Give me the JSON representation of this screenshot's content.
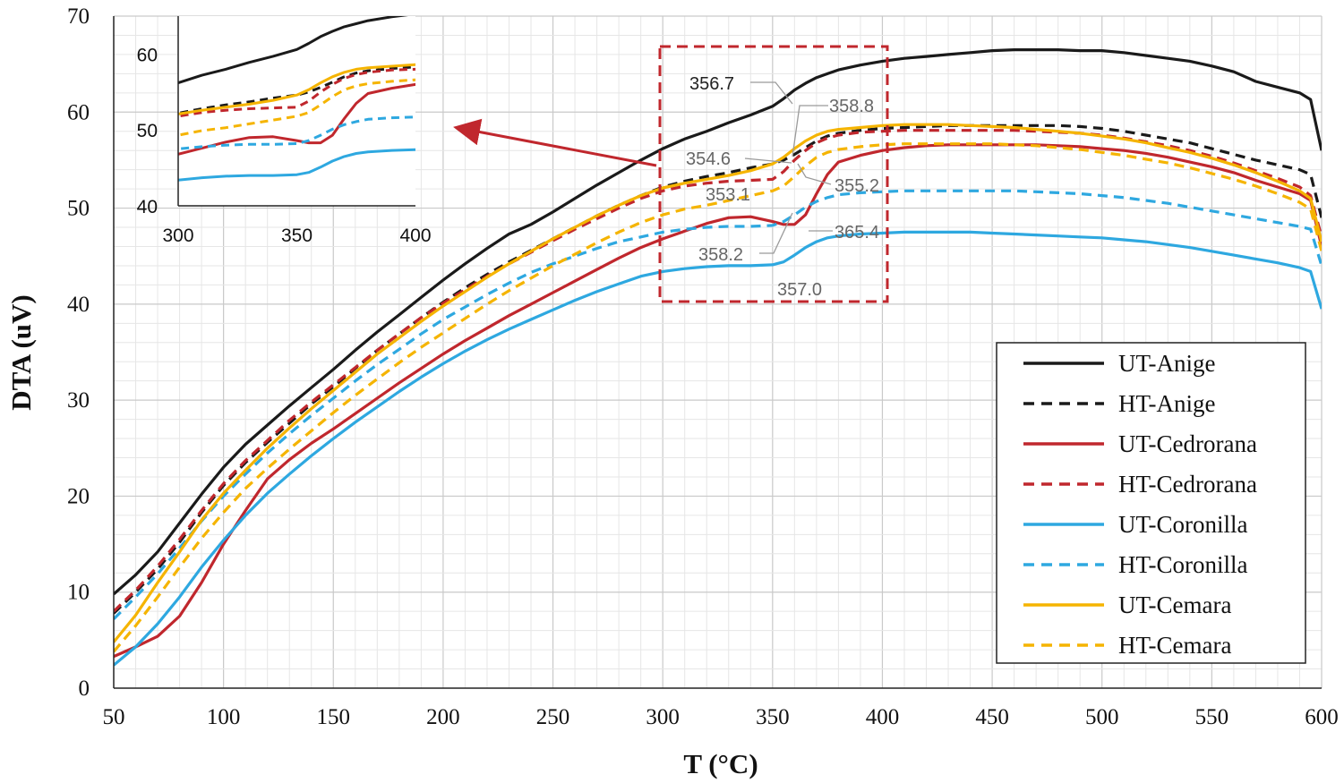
{
  "chart_data": {
    "type": "line",
    "title": "",
    "xlabel": "T (°C)",
    "ylabel": "DTA (uV)",
    "xlim": [
      50,
      600
    ],
    "ylim": [
      0,
      70
    ],
    "xticks": [
      "50",
      "100",
      "150",
      "200",
      "250",
      "300",
      "350",
      "400",
      "450",
      "500",
      "550",
      "600"
    ],
    "yticks": [
      "0",
      "10",
      "20",
      "30",
      "40",
      "50",
      "60",
      "70"
    ],
    "grid": true,
    "legend_position": "bottom-right",
    "x": [
      50,
      60,
      70,
      80,
      90,
      100,
      110,
      120,
      130,
      140,
      150,
      160,
      170,
      180,
      190,
      200,
      210,
      220,
      230,
      240,
      250,
      260,
      270,
      280,
      290,
      300,
      310,
      320,
      330,
      340,
      350,
      355,
      360,
      365,
      370,
      375,
      380,
      390,
      400,
      410,
      420,
      430,
      440,
      450,
      460,
      470,
      480,
      490,
      500,
      510,
      520,
      530,
      540,
      550,
      560,
      570,
      580,
      590,
      595,
      600
    ],
    "series": [
      {
        "name": "UT-Anige",
        "color": "#1a1a1a",
        "dash": false,
        "values": [
          9.8,
          11.8,
          14.2,
          17.2,
          20.2,
          23.0,
          25.4,
          27.4,
          29.4,
          31.3,
          33.2,
          35.2,
          37.1,
          38.9,
          40.7,
          42.5,
          44.2,
          45.8,
          47.3,
          48.3,
          49.6,
          51.0,
          52.4,
          53.7,
          55.0,
          56.2,
          57.2,
          58.0,
          58.9,
          59.7,
          60.6,
          61.4,
          62.3,
          63.0,
          63.6,
          64.0,
          64.4,
          64.9,
          65.3,
          65.6,
          65.8,
          66.0,
          66.2,
          66.4,
          66.5,
          66.5,
          66.5,
          66.4,
          66.4,
          66.2,
          65.9,
          65.6,
          65.3,
          64.8,
          64.2,
          63.2,
          62.6,
          62.0,
          61.3,
          56.0
        ]
      },
      {
        "name": "HT-Anige",
        "color": "#1a1a1a",
        "dash": true,
        "values": [
          7.8,
          10.0,
          12.4,
          15.2,
          18.3,
          21.1,
          23.5,
          25.6,
          27.6,
          29.6,
          31.4,
          33.3,
          35.2,
          36.9,
          38.6,
          40.2,
          41.7,
          43.1,
          44.4,
          45.6,
          46.8,
          48.0,
          49.2,
          50.3,
          51.3,
          52.2,
          52.8,
          53.3,
          53.7,
          54.2,
          54.6,
          55.0,
          55.6,
          56.3,
          57.0,
          57.5,
          57.8,
          58.1,
          58.3,
          58.4,
          58.5,
          58.6,
          58.6,
          58.6,
          58.6,
          58.6,
          58.6,
          58.5,
          58.3,
          58.0,
          57.6,
          57.2,
          56.8,
          56.2,
          55.6,
          55.0,
          54.5,
          54.0,
          53.5,
          49.0
        ]
      },
      {
        "name": "UT-Cedrorana",
        "color": "#c0272d",
        "dash": false,
        "values": [
          3.3,
          4.3,
          5.4,
          7.5,
          11.0,
          15.0,
          18.5,
          21.8,
          23.8,
          25.5,
          27.0,
          28.6,
          30.2,
          31.8,
          33.3,
          34.8,
          36.2,
          37.5,
          38.8,
          40.0,
          41.2,
          42.4,
          43.6,
          44.8,
          45.9,
          46.8,
          47.6,
          48.4,
          49.0,
          49.1,
          48.6,
          48.3,
          48.3,
          49.3,
          51.5,
          53.5,
          54.8,
          55.5,
          56.0,
          56.3,
          56.5,
          56.6,
          56.6,
          56.6,
          56.6,
          56.6,
          56.5,
          56.4,
          56.2,
          56.0,
          55.7,
          55.3,
          54.8,
          54.3,
          53.7,
          52.9,
          52.2,
          51.5,
          50.8,
          46.0
        ]
      },
      {
        "name": "HT-Cedrorana",
        "color": "#c0272d",
        "dash": true,
        "values": [
          8.0,
          10.2,
          12.7,
          15.5,
          18.5,
          21.3,
          23.7,
          25.8,
          27.9,
          29.8,
          31.6,
          33.4,
          35.2,
          36.9,
          38.6,
          40.1,
          41.5,
          42.9,
          44.2,
          45.4,
          46.6,
          47.8,
          48.9,
          50.0,
          51.0,
          51.8,
          52.3,
          52.6,
          52.8,
          52.9,
          53.0,
          53.8,
          55.0,
          56.0,
          56.8,
          57.3,
          57.6,
          57.9,
          58.0,
          58.1,
          58.1,
          58.1,
          58.1,
          58.1,
          58.1,
          58.0,
          57.9,
          57.8,
          57.6,
          57.3,
          56.9,
          56.5,
          56.0,
          55.4,
          54.7,
          53.9,
          53.1,
          52.2,
          51.3,
          47.0
        ]
      },
      {
        "name": "UT-Coronilla",
        "color": "#2ea8e0",
        "dash": false,
        "values": [
          2.4,
          4.3,
          6.7,
          9.5,
          12.6,
          15.4,
          18.0,
          20.3,
          22.3,
          24.2,
          26.0,
          27.7,
          29.3,
          30.9,
          32.4,
          33.8,
          35.1,
          36.3,
          37.4,
          38.4,
          39.4,
          40.4,
          41.3,
          42.1,
          42.9,
          43.4,
          43.7,
          43.9,
          44.0,
          44.0,
          44.1,
          44.4,
          45.1,
          45.9,
          46.5,
          46.9,
          47.1,
          47.3,
          47.4,
          47.5,
          47.5,
          47.5,
          47.5,
          47.4,
          47.3,
          47.2,
          47.1,
          47.0,
          46.9,
          46.7,
          46.5,
          46.2,
          45.9,
          45.5,
          45.1,
          44.7,
          44.3,
          43.8,
          43.4,
          39.5
        ]
      },
      {
        "name": "HT-Coronilla",
        "color": "#2ea8e0",
        "dash": true,
        "values": [
          7.2,
          9.5,
          11.9,
          14.6,
          17.4,
          20.0,
          22.3,
          24.5,
          26.5,
          28.4,
          30.2,
          32.0,
          33.7,
          35.3,
          36.9,
          38.4,
          39.7,
          41.0,
          42.2,
          43.3,
          44.2,
          45.0,
          45.8,
          46.5,
          47.0,
          47.5,
          47.8,
          48.0,
          48.1,
          48.1,
          48.2,
          48.6,
          49.3,
          50.1,
          50.7,
          51.1,
          51.4,
          51.6,
          51.7,
          51.8,
          51.8,
          51.8,
          51.8,
          51.8,
          51.8,
          51.7,
          51.6,
          51.5,
          51.3,
          51.1,
          50.8,
          50.5,
          50.1,
          49.7,
          49.3,
          48.9,
          48.5,
          48.1,
          47.8,
          44.0
        ]
      },
      {
        "name": "UT-Cemara",
        "color": "#f5b400",
        "dash": false,
        "values": [
          4.8,
          7.6,
          11.0,
          14.2,
          17.5,
          20.3,
          22.7,
          25.0,
          27.1,
          29.1,
          31.0,
          32.9,
          34.8,
          36.5,
          38.2,
          39.8,
          41.3,
          42.8,
          44.2,
          45.5,
          46.8,
          48.0,
          49.2,
          50.3,
          51.3,
          52.1,
          52.6,
          53.0,
          53.4,
          53.9,
          54.6,
          55.3,
          56.2,
          57.0,
          57.6,
          58.0,
          58.2,
          58.4,
          58.6,
          58.7,
          58.7,
          58.7,
          58.6,
          58.5,
          58.4,
          58.2,
          58.0,
          57.8,
          57.5,
          57.2,
          56.8,
          56.3,
          55.8,
          55.2,
          54.5,
          53.7,
          52.8,
          51.8,
          51.0,
          46.5
        ]
      },
      {
        "name": "HT-Cemara",
        "color": "#f5b400",
        "dash": true,
        "values": [
          3.8,
          6.5,
          9.5,
          12.6,
          15.6,
          18.3,
          20.8,
          22.9,
          24.9,
          26.8,
          28.7,
          30.5,
          32.2,
          33.9,
          35.5,
          37.0,
          38.5,
          40.0,
          41.4,
          42.7,
          44.0,
          45.2,
          46.4,
          47.5,
          48.5,
          49.3,
          49.9,
          50.3,
          50.8,
          51.3,
          51.8,
          52.3,
          53.3,
          54.4,
          55.3,
          55.8,
          56.1,
          56.4,
          56.6,
          56.7,
          56.7,
          56.7,
          56.7,
          56.7,
          56.6,
          56.5,
          56.3,
          56.1,
          55.8,
          55.5,
          55.1,
          54.7,
          54.2,
          53.6,
          53.0,
          52.3,
          51.5,
          50.6,
          49.9,
          45.5
        ]
      }
    ],
    "annotations": [
      "356.7",
      "358.8",
      "354.6",
      "355.2",
      "353.1",
      "365.4",
      "358.2",
      "357.0"
    ],
    "inset": {
      "xlim": [
        300,
        400
      ],
      "ylim": [
        40,
        65
      ],
      "xticks": [
        "300",
        "350",
        "400"
      ],
      "yticks": [
        "40",
        "50",
        "60"
      ]
    }
  }
}
